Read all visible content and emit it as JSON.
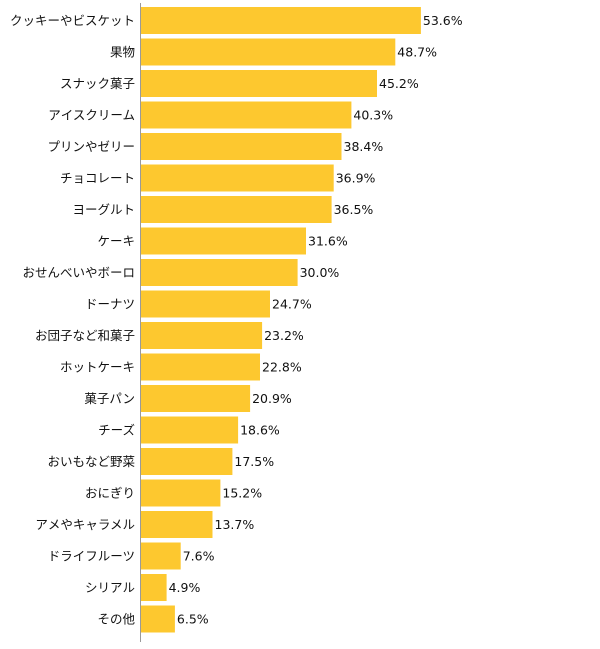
{
  "chart_data": {
    "type": "bar",
    "orientation": "horizontal",
    "title": "",
    "xlabel": "",
    "ylabel": "",
    "xlim": [
      0,
      85.8
    ],
    "value_suffix": "%",
    "bar_color": "#FDC82F",
    "axis_color": "#9a9a9a",
    "categories": [
      "クッキーやビスケット",
      "果物",
      "スナック菓子",
      "アイスクリーム",
      "プリンやゼリー",
      "チョコレート",
      "ヨーグルト",
      "ケーキ",
      "おせんべいやボーロ",
      "ドーナツ",
      "お団子など和菓子",
      "ホットケーキ",
      "菓子パン",
      "チーズ",
      "おいもなど野菜",
      "おにぎり",
      "アメやキャラメル",
      "ドライフルーツ",
      "シリアル",
      "その他"
    ],
    "values": [
      53.6,
      48.7,
      45.2,
      40.3,
      38.4,
      36.9,
      36.5,
      31.6,
      30.0,
      24.7,
      23.2,
      22.8,
      20.9,
      18.6,
      17.5,
      15.2,
      13.7,
      7.6,
      4.9,
      6.5
    ],
    "value_labels": [
      "53.6%",
      "48.7%",
      "45.2%",
      "40.3%",
      "38.4%",
      "36.9%",
      "36.5%",
      "31.6%",
      "30.0%",
      "24.7%",
      "23.2%",
      "22.8%",
      "20.9%",
      "18.6%",
      "17.5%",
      "15.2%",
      "13.7%",
      "7.6%",
      "4.9%",
      "6.5%"
    ]
  }
}
